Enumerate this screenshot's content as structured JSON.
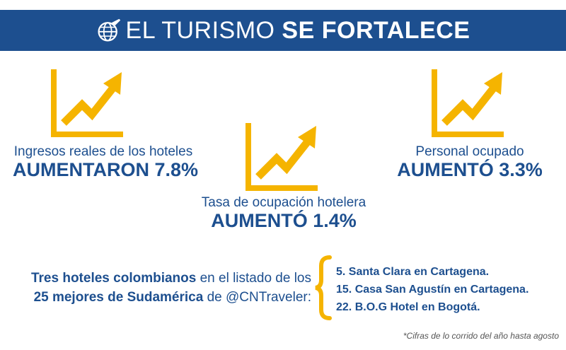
{
  "header": {
    "title_light": "EL TURISMO",
    "title_bold": "SE FORTALECE",
    "icon": "globe-plane-icon"
  },
  "stats": [
    {
      "label": "Ingresos reales de los hoteles",
      "value": "AUMENTARON 7.8%",
      "icon": "growth-chart-icon"
    },
    {
      "label": "Tasa de ocupación hotelera",
      "value": "AUMENTÓ 1.4%",
      "icon": "growth-chart-icon"
    },
    {
      "label": "Personal ocupado",
      "value": "AUMENTÓ 3.3%",
      "icon": "growth-chart-icon"
    }
  ],
  "bottom": {
    "part1_bold": "Tres hoteles colombianos",
    "part1_rest": " en el listado de los",
    "part2_bold": "25 mejores de Sudamérica",
    "part2_rest": " de @CNTraveler:",
    "hotels": [
      "5. Santa Clara en Cartagena.",
      "15. Casa San Agustín en Cartagena.",
      "22. B.O.G Hotel en Bogotá."
    ]
  },
  "footnote": "*Cifras de lo corrido del año hasta agosto",
  "colors": {
    "brand_blue": "#1d4f8f",
    "accent_yellow": "#f5b400"
  }
}
